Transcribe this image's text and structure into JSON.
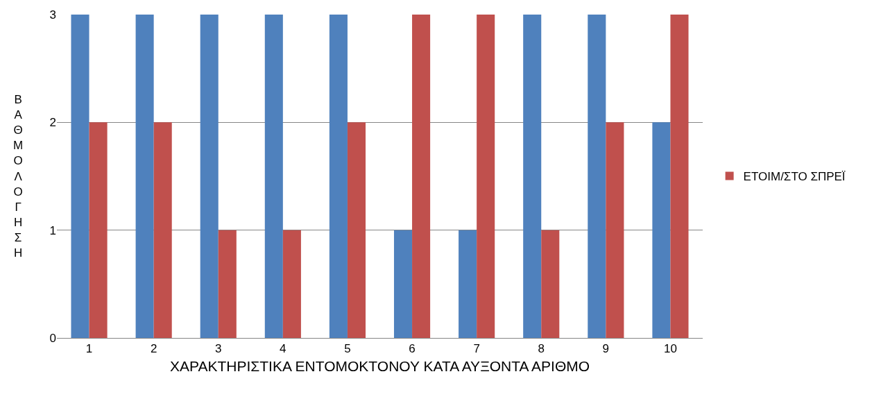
{
  "chart_data": {
    "type": "bar",
    "xlabel": "ΧΑΡΑΚΤΗΡΙΣΤΙΚΑ ΕΝΤΟΜΟΚΤΟΝΟΥ ΚΑΤΑ ΑΥΞΟΝΤΑ ΑΡΙΘΜΟ",
    "ylabel": "ΒΑΘΜΟΛΟΓΗΣΗ",
    "categories": [
      "1",
      "2",
      "3",
      "4",
      "5",
      "6",
      "7",
      "8",
      "9",
      "10"
    ],
    "series": [
      {
        "color": "#4f81bd",
        "values": [
          3,
          3,
          3,
          3,
          3,
          1,
          1,
          3,
          3,
          2
        ]
      },
      {
        "name": "ΕΤΟΙΜ/ΣΤΟ ΣΠΡΕΪ",
        "color": "#c0504d",
        "values": [
          2,
          2,
          1,
          1,
          2,
          3,
          3,
          1,
          2,
          3
        ]
      }
    ],
    "ylim": [
      0,
      3
    ],
    "yticks": [
      0,
      1,
      2,
      3
    ],
    "grid": "y",
    "legend": "right"
  }
}
